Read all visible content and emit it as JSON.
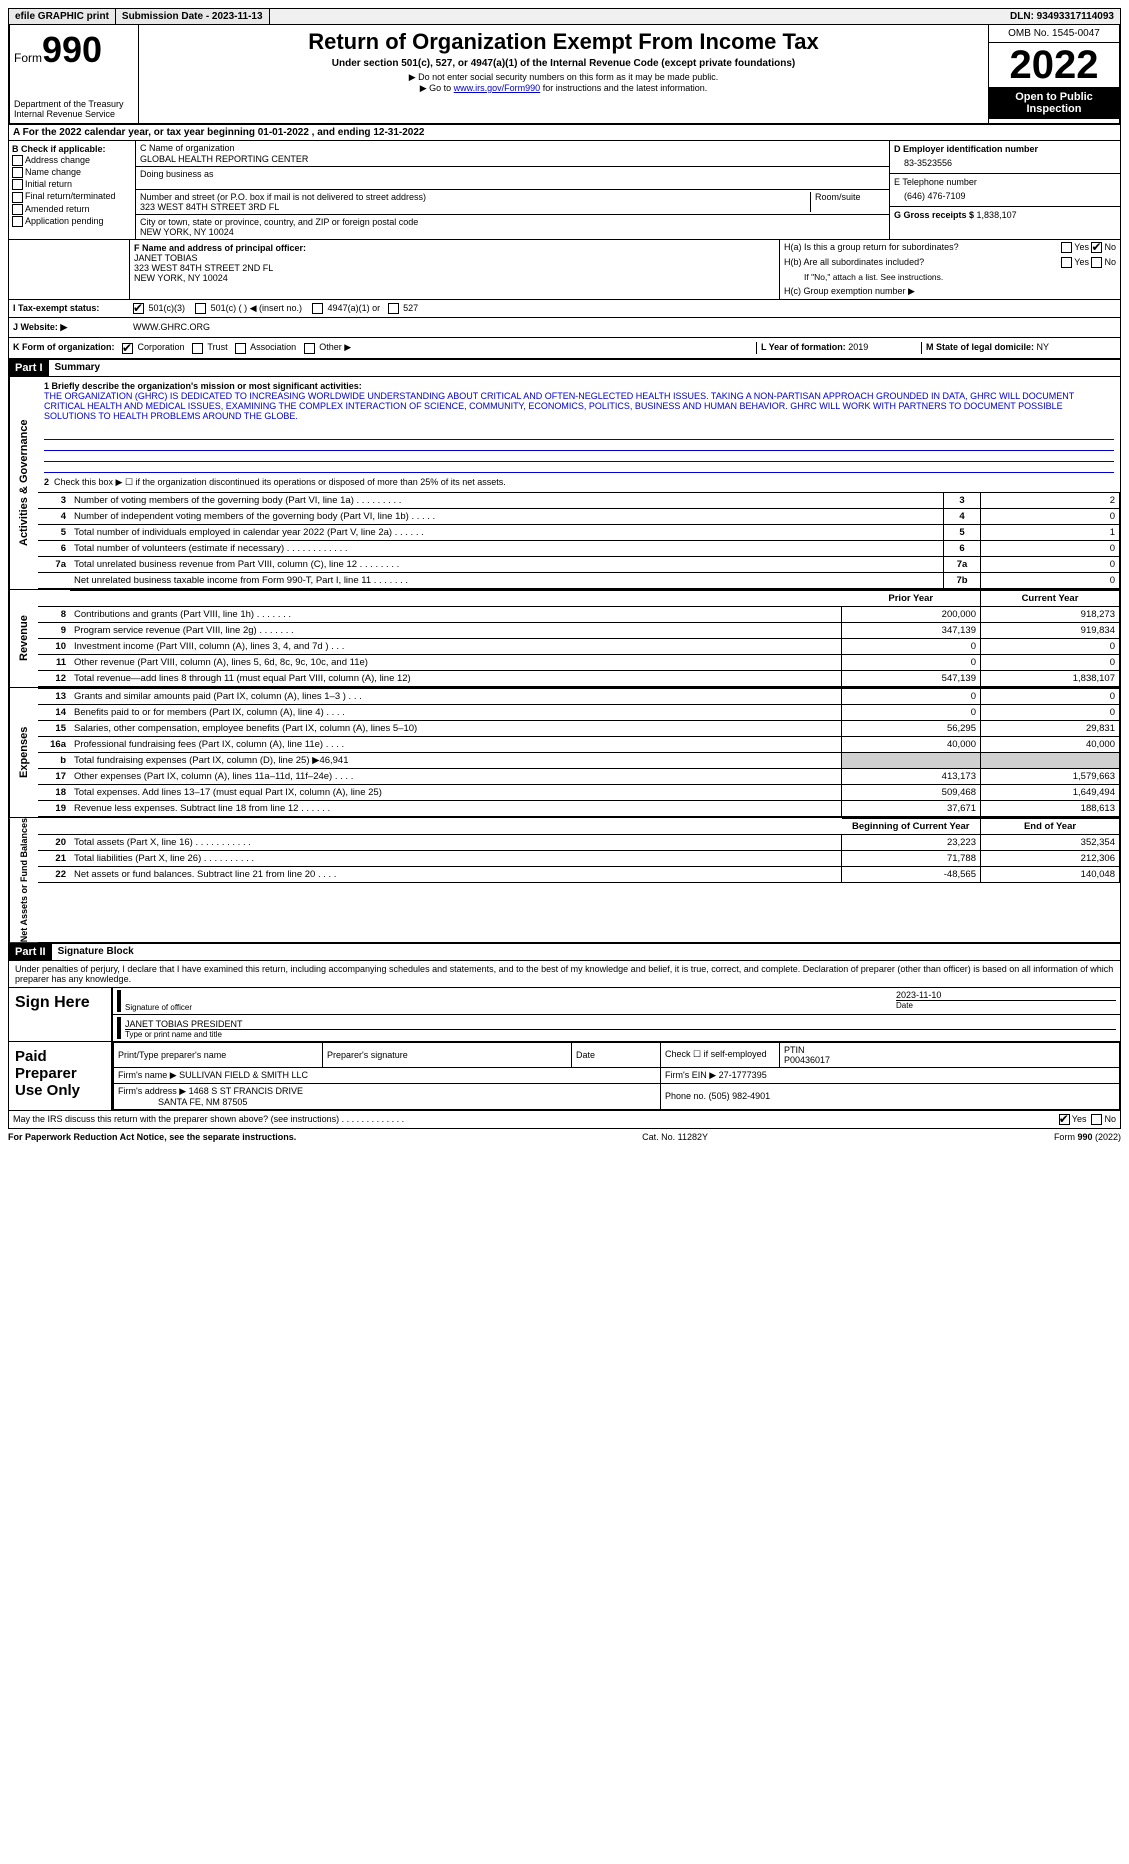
{
  "topbar": {
    "efile": "efile GRAPHIC print",
    "submission": "Submission Date - 2023-11-13",
    "dln": "DLN: 93493317114093"
  },
  "header": {
    "form_label": "Form",
    "form_num": "990",
    "dept1": "Department of the Treasury",
    "dept2": "Internal Revenue Service",
    "title": "Return of Organization Exempt From Income Tax",
    "sub": "Under section 501(c), 527, or 4947(a)(1) of the Internal Revenue Code (except private foundations)",
    "note1": "▶ Do not enter social security numbers on this form as it may be made public.",
    "note2_pre": "▶ Go to ",
    "note2_link": "www.irs.gov/Form990",
    "note2_post": " for instructions and the latest information.",
    "omb": "OMB No. 1545-0047",
    "year": "2022",
    "open": "Open to Public Inspection"
  },
  "rowA": "A  For the 2022 calendar year, or tax year beginning 01-01-2022     , and ending 12-31-2022",
  "colB": {
    "head": "B Check if applicable:",
    "items": [
      "Address change",
      "Name change",
      "Initial return",
      "Final return/terminated",
      "Amended return",
      "Application pending"
    ]
  },
  "colC": {
    "name_lbl": "C Name of organization",
    "name": "GLOBAL HEALTH REPORTING CENTER",
    "dba_lbl": "Doing business as",
    "addr_lbl": "Number and street (or P.O. box if mail is not delivered to street address)",
    "room_lbl": "Room/suite",
    "addr": "323 WEST 84TH STREET 3RD FL",
    "city_lbl": "City or town, state or province, country, and ZIP or foreign postal code",
    "city": "NEW YORK, NY  10024"
  },
  "colD": {
    "ein_lbl": "D Employer identification number",
    "ein": "83-3523556",
    "phone_lbl": "E Telephone number",
    "phone": "(646) 476-7109",
    "gross_lbl": "G Gross receipts $ ",
    "gross": "1,838,107"
  },
  "secF": {
    "lbl": "F Name and address of principal officer:",
    "name": "JANET TOBIAS",
    "addr1": "323 WEST 84TH STREET 2ND FL",
    "addr2": "NEW YORK, NY  10024"
  },
  "secH": {
    "ha": "H(a)  Is this a group return for subordinates?",
    "hb": "H(b)  Are all subordinates included?",
    "hb_note": "If \"No,\" attach a list. See instructions.",
    "hc": "H(c)  Group exemption number ▶"
  },
  "secI": {
    "lbl": "I     Tax-exempt status:",
    "o1": "501(c)(3)",
    "o2": "501(c) (   ) ◀ (insert no.)",
    "o3": "4947(a)(1) or",
    "o4": "527"
  },
  "secJ": {
    "lbl": "J    Website: ▶",
    "val": "WWW.GHRC.ORG"
  },
  "secK": {
    "lbl": "K Form of organization:",
    "o1": "Corporation",
    "o2": "Trust",
    "o3": "Association",
    "o4": "Other ▶"
  },
  "secL": {
    "lbl": "L Year of formation: ",
    "val": "2019"
  },
  "secM": {
    "lbl": "M State of legal domicile: ",
    "val": "NY"
  },
  "part1": {
    "num": "Part I",
    "title": "Summary"
  },
  "summary": {
    "side1": "Activities & Governance",
    "side2": "Revenue",
    "side3": "Expenses",
    "side4": "Net Assets or Fund Balances",
    "l1_lbl": "1  Briefly describe the organization's mission or most significant activities:",
    "l1_text": "THE ORGANIZATION (GHRC) IS DEDICATED TO INCREASING WORLDWIDE UNDERSTANDING ABOUT CRITICAL AND OFTEN-NEGLECTED HEALTH ISSUES. TAKING A NON-PARTISAN APPROACH GROUNDED IN DATA, GHRC WILL DOCUMENT CRITICAL HEALTH AND MEDICAL ISSUES, EXAMINING THE COMPLEX INTERACTION OF SCIENCE, COMMUNITY, ECONOMICS, POLITICS, BUSINESS AND HUMAN BEHAVIOR. GHRC WILL WORK WITH PARTNERS TO DOCUMENT POSSIBLE SOLUTIONS TO HEALTH PROBLEMS AROUND THE GLOBE.",
    "l2": "Check this box ▶ ☐  if the organization discontinued its operations or disposed of more than 25% of its net assets.",
    "rows_ag": [
      {
        "n": "3",
        "d": "Number of voting members of the governing body (Part VI, line 1a)   .     .     .     .     .     .     .     .     .",
        "ln": "3",
        "v": "2"
      },
      {
        "n": "4",
        "d": "Number of independent voting members of the governing body (Part VI, line 1b)     .     .     .     .     .",
        "ln": "4",
        "v": "0"
      },
      {
        "n": "5",
        "d": "Total number of individuals employed in calendar year 2022 (Part V, line 2a)     .     .     .     .     .     .",
        "ln": "5",
        "v": "1"
      },
      {
        "n": "6",
        "d": "Total number of volunteers (estimate if necessary)   .     .     .     .     .     .     .     .     .     .     .     .",
        "ln": "6",
        "v": "0"
      },
      {
        "n": "7a",
        "d": "Total unrelated business revenue from Part VIII, column (C), line 12   .     .     .     .     .     .     .     .",
        "ln": "7a",
        "v": "0"
      },
      {
        "n": "",
        "d": "Net unrelated business taxable income from Form 990-T, Part I, line 11   .     .     .     .     .     .     .",
        "ln": "7b",
        "v": "0"
      }
    ],
    "col_prior": "Prior Year",
    "col_curr": "Current Year",
    "rows_rev": [
      {
        "n": "8",
        "d": "Contributions and grants (Part VIII, line 1h)   .     .     .     .     .     .     .",
        "p": "200,000",
        "c": "918,273"
      },
      {
        "n": "9",
        "d": "Program service revenue (Part VIII, line 2g)   .     .     .     .     .     .     .",
        "p": "347,139",
        "c": "919,834"
      },
      {
        "n": "10",
        "d": "Investment income (Part VIII, column (A), lines 3, 4, and 7d )   .     .     .",
        "p": "0",
        "c": "0"
      },
      {
        "n": "11",
        "d": "Other revenue (Part VIII, column (A), lines 5, 6d, 8c, 9c, 10c, and 11e)",
        "p": "0",
        "c": "0"
      },
      {
        "n": "12",
        "d": "Total revenue—add lines 8 through 11 (must equal Part VIII, column (A), line 12)",
        "p": "547,139",
        "c": "1,838,107"
      }
    ],
    "rows_exp": [
      {
        "n": "13",
        "d": "Grants and similar amounts paid (Part IX, column (A), lines 1–3 )   .     .     .",
        "p": "0",
        "c": "0"
      },
      {
        "n": "14",
        "d": "Benefits paid to or for members (Part IX, column (A), line 4)   .     .     .     .",
        "p": "0",
        "c": "0"
      },
      {
        "n": "15",
        "d": "Salaries, other compensation, employee benefits (Part IX, column (A), lines 5–10)",
        "p": "56,295",
        "c": "29,831"
      },
      {
        "n": "16a",
        "d": "Professional fundraising fees (Part IX, column (A), line 11e)   .     .     .     .",
        "p": "40,000",
        "c": "40,000"
      },
      {
        "n": "b",
        "d": "Total fundraising expenses (Part IX, column (D), line 25) ▶46,941",
        "grey": true
      },
      {
        "n": "17",
        "d": "Other expenses (Part IX, column (A), lines 11a–11d, 11f–24e)   .     .     .     .",
        "p": "413,173",
        "c": "1,579,663"
      },
      {
        "n": "18",
        "d": "Total expenses. Add lines 13–17 (must equal Part IX, column (A), line 25)",
        "p": "509,468",
        "c": "1,649,494"
      },
      {
        "n": "19",
        "d": "Revenue less expenses. Subtract line 18 from line 12   .     .     .     .     .     .",
        "p": "37,671",
        "c": "188,613"
      }
    ],
    "col_beg": "Beginning of Current Year",
    "col_end": "End of Year",
    "rows_net": [
      {
        "n": "20",
        "d": "Total assets (Part X, line 16)   .     .     .     .     .     .     .     .     .     .     .",
        "p": "23,223",
        "c": "352,354"
      },
      {
        "n": "21",
        "d": "Total liabilities (Part X, line 26)   .     .     .     .     .     .     .     .     .     .",
        "p": "71,788",
        "c": "212,306"
      },
      {
        "n": "22",
        "d": "Net assets or fund balances. Subtract line 21 from line 20   .     .     .     .",
        "p": "-48,565",
        "c": "140,048"
      }
    ]
  },
  "part2": {
    "num": "Part II",
    "title": "Signature Block"
  },
  "sig": {
    "intro": "Under penalties of perjury, I declare that I have examined this return, including accompanying schedules and statements, and to the best of my knowledge and belief, it is true, correct, and complete. Declaration of preparer (other than officer) is based on all information of which preparer has any knowledge.",
    "sign_here": "Sign Here",
    "sig_officer": "Signature of officer",
    "date_lbl": "Date",
    "date_val": "2023-11-10",
    "name_title": "JANET TOBIAS PRESIDENT",
    "name_title_lbl": "Type or print name and title",
    "paid": "Paid Preparer Use Only",
    "prep_name_lbl": "Print/Type preparer's name",
    "prep_sig_lbl": "Preparer's signature",
    "prep_date_lbl": "Date",
    "self_emp": "Check ☐ if self-employed",
    "ptin_lbl": "PTIN",
    "ptin": "P00436017",
    "firm_name_lbl": "Firm's name    ▶",
    "firm_name": "SULLIVAN FIELD & SMITH LLC",
    "firm_ein_lbl": "Firm's EIN ▶",
    "firm_ein": "27-1777395",
    "firm_addr_lbl": "Firm's address ▶",
    "firm_addr1": "1468 S ST FRANCIS DRIVE",
    "firm_addr2": "SANTA FE, NM  87505",
    "firm_phone_lbl": "Phone no.",
    "firm_phone": "(505) 982-4901",
    "discuss": "May the IRS discuss this return with the preparer shown above? (see instructions)   .     .     .     .     .     .     .     .     .     .     .     .     ."
  },
  "footer": {
    "left": "For Paperwork Reduction Act Notice, see the separate instructions.",
    "mid": "Cat. No. 11282Y",
    "right": "Form 990 (2022)"
  },
  "yn": {
    "yes": "Yes",
    "no": "No"
  }
}
